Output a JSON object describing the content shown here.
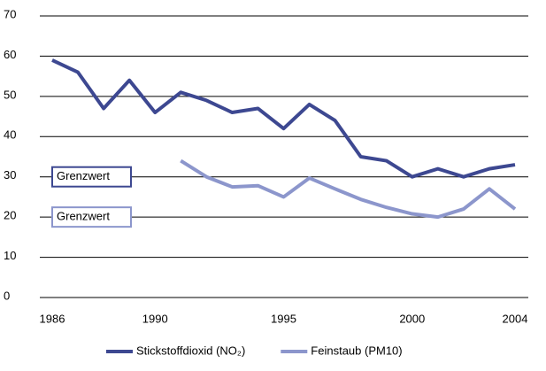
{
  "chart_data": {
    "type": "line",
    "x": [
      1986,
      1987,
      1988,
      1989,
      1990,
      1991,
      1992,
      1993,
      1994,
      1995,
      1996,
      1997,
      1998,
      1999,
      2000,
      2001,
      2002,
      2003,
      2004
    ],
    "series": [
      {
        "name": "Stickstoffdioxid (NO₂)",
        "color": "#3d4891",
        "values": [
          59,
          56,
          47,
          54,
          46,
          51,
          49,
          46,
          47,
          42,
          48,
          44,
          35,
          34,
          30,
          32,
          30,
          32,
          33
        ]
      },
      {
        "name": "Feinstaub (PM10)",
        "color": "#8c96cc",
        "values": [
          null,
          null,
          null,
          null,
          null,
          34,
          30,
          27.5,
          27.8,
          25,
          29.7,
          27,
          24.4,
          22.4,
          20.8,
          20,
          22,
          27,
          22
        ]
      }
    ],
    "annotations": [
      {
        "text": "Grenzwert",
        "y": 30,
        "color": "#3d4891"
      },
      {
        "text": "Grenzwert",
        "y": 20,
        "color": "#8c96cc"
      }
    ],
    "xlim": [
      1986,
      2004
    ],
    "xticks": [
      1986,
      1990,
      1995,
      2000,
      2004
    ],
    "ylim": [
      0,
      70
    ],
    "yticks": [
      0,
      10,
      20,
      30,
      40,
      50,
      60,
      70
    ],
    "grid": true
  }
}
